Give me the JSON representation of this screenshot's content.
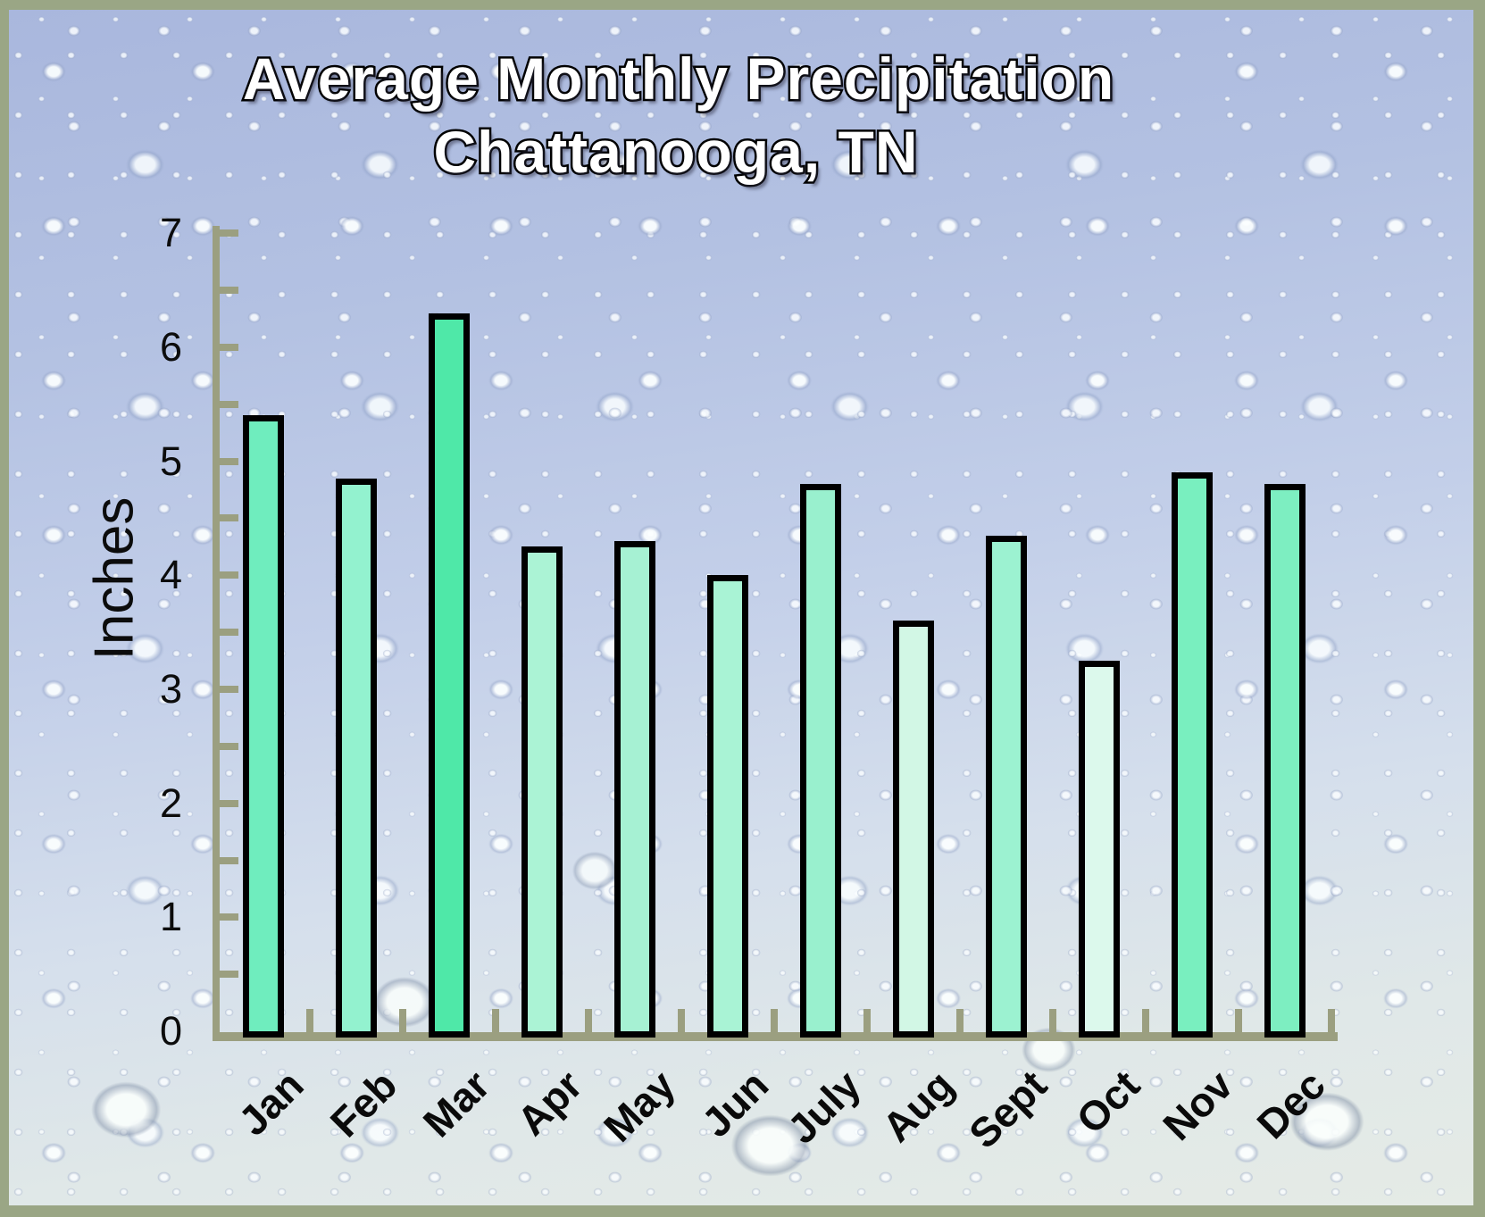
{
  "chart_data": {
    "type": "bar",
    "title": "Average Monthly Precipitation",
    "subtitle": "Chattanooga, TN",
    "categories": [
      "Jan",
      "Feb",
      "Mar",
      "Apr",
      "May",
      "Jun",
      "July",
      "Aug",
      "Sept",
      "Oct",
      "Nov",
      "Dec"
    ],
    "values": [
      5.4,
      4.85,
      6.3,
      4.25,
      4.3,
      4.0,
      4.8,
      3.6,
      4.35,
      3.25,
      4.9,
      4.8
    ],
    "bar_colors": [
      "#6fedbe",
      "#93f2cf",
      "#4fe8a8",
      "#abf3d5",
      "#a6f1d3",
      "#a9f3d5",
      "#99f0ce",
      "#d2f7e5",
      "#9cf2d1",
      "#dcf9ec",
      "#79efbf",
      "#7deec1"
    ],
    "xlabel": "",
    "ylabel": "Inches",
    "ylim": [
      0,
      7
    ],
    "y_tick_labels": [
      "0",
      "1",
      "2",
      "3",
      "4",
      "5",
      "6",
      "7"
    ],
    "y_minor_step": 0.5,
    "grid": false,
    "legend": false,
    "bar_outline_color": "#000000",
    "axis_color": "#9b9f80",
    "frame_color": "#9aa685"
  }
}
